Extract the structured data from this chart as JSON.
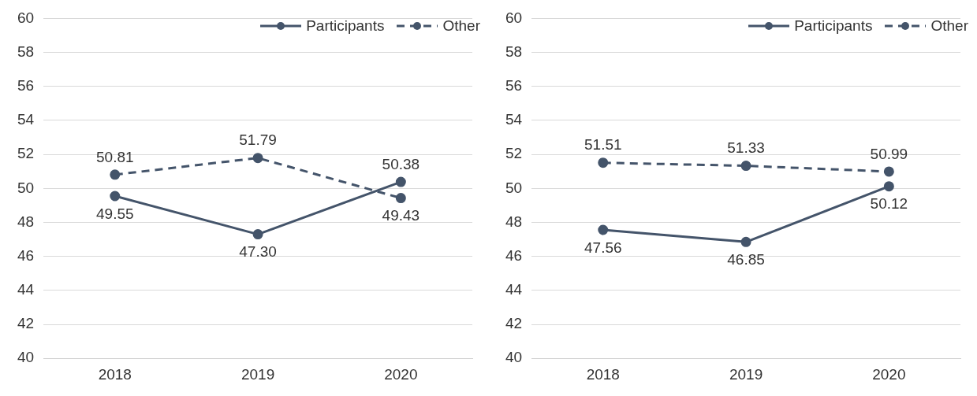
{
  "chart_data": [
    {
      "type": "line",
      "categories": [
        "2018",
        "2019",
        "2020"
      ],
      "ylim": [
        40,
        60
      ],
      "yticks": [
        40,
        42,
        44,
        46,
        48,
        50,
        52,
        54,
        56,
        58,
        60
      ],
      "grid": "y",
      "legend": "top right",
      "marker": "circle",
      "series": [
        {
          "name": "Participants",
          "color": "#44546a",
          "line_style": "solid",
          "values": [
            49.55,
            47.3,
            50.38
          ],
          "value_labels": [
            "49.55",
            "47.30",
            "50.38"
          ]
        },
        {
          "name": "Other",
          "color": "#44546a",
          "line_style": "dashed",
          "values": [
            50.81,
            51.79,
            49.43
          ],
          "value_labels": [
            "50.81",
            "51.79",
            "49.43"
          ]
        }
      ]
    },
    {
      "type": "line",
      "categories": [
        "2018",
        "2019",
        "2020"
      ],
      "ylim": [
        40,
        60
      ],
      "yticks": [
        40,
        42,
        44,
        46,
        48,
        50,
        52,
        54,
        56,
        58,
        60
      ],
      "grid": "y",
      "legend": "top right",
      "marker": "circle",
      "series": [
        {
          "name": "Participants",
          "color": "#44546a",
          "line_style": "solid",
          "values": [
            47.56,
            46.85,
            50.12
          ],
          "value_labels": [
            "47.56",
            "46.85",
            "50.12"
          ]
        },
        {
          "name": "Other",
          "color": "#44546a",
          "line_style": "dashed",
          "values": [
            51.51,
            51.33,
            50.99
          ],
          "value_labels": [
            "51.51",
            "51.33",
            "50.99"
          ]
        }
      ]
    }
  ]
}
